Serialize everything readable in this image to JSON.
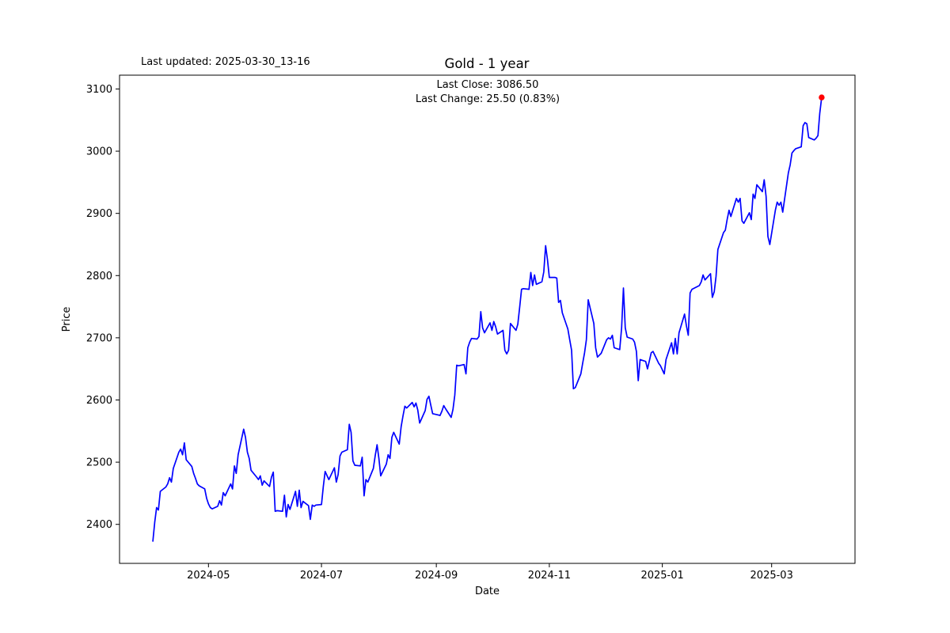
{
  "header": {
    "last_updated": "Last updated: 2025-03-30_13-16",
    "title": "Gold - 1 year"
  },
  "annotation": {
    "line1": "Last Close: 3086.50",
    "line2": "Last Change: 25.50 (0.83%)"
  },
  "axes": {
    "x_label": "Date",
    "y_label": "Price",
    "x_range": [
      "2024-03-14",
      "2025-04-15"
    ],
    "y_range": [
      2337.3,
      3122.2
    ],
    "x_ticks": [
      {
        "label": "2024-05",
        "date": "2024-05-01"
      },
      {
        "label": "2024-07",
        "date": "2024-07-01"
      },
      {
        "label": "2024-09",
        "date": "2024-09-01"
      },
      {
        "label": "2024-11",
        "date": "2024-11-01"
      },
      {
        "label": "2025-01",
        "date": "2025-01-01"
      },
      {
        "label": "2025-03",
        "date": "2025-03-01"
      }
    ],
    "y_ticks": [
      2400,
      2500,
      2600,
      2700,
      2800,
      2900,
      3000,
      3100
    ]
  },
  "chart_data": {
    "type": "line",
    "title": "Gold - 1 year",
    "xlabel": "Date",
    "ylabel": "Price",
    "grid": false,
    "legend": false,
    "last_close": 3086.5,
    "last_change": 25.5,
    "last_change_pct": 0.83,
    "last_point": {
      "date": "2025-03-28",
      "price": 3086.5,
      "marker_color": "#ff0000",
      "marker_radius": 3.7
    },
    "series": [
      {
        "name": "Gold price",
        "color": "#0000ff",
        "width": 1.7,
        "points": [
          [
            "2024-04-01",
            2373
          ],
          [
            "2024-04-02",
            2404
          ],
          [
            "2024-04-03",
            2427
          ],
          [
            "2024-04-04",
            2423
          ],
          [
            "2024-04-05",
            2453
          ],
          [
            "2024-04-08",
            2460
          ],
          [
            "2024-04-09",
            2465
          ],
          [
            "2024-04-10",
            2475
          ],
          [
            "2024-04-11",
            2468
          ],
          [
            "2024-04-12",
            2490
          ],
          [
            "2024-04-15",
            2516
          ],
          [
            "2024-04-16",
            2521
          ],
          [
            "2024-04-17",
            2512
          ],
          [
            "2024-04-18",
            2531
          ],
          [
            "2024-04-19",
            2504
          ],
          [
            "2024-04-22",
            2493
          ],
          [
            "2024-04-23",
            2482
          ],
          [
            "2024-04-24",
            2474
          ],
          [
            "2024-04-25",
            2465
          ],
          [
            "2024-04-26",
            2462
          ],
          [
            "2024-04-29",
            2457
          ],
          [
            "2024-04-30",
            2442
          ],
          [
            "2024-05-01",
            2433
          ],
          [
            "2024-05-02",
            2427
          ],
          [
            "2024-05-03",
            2425
          ],
          [
            "2024-05-06",
            2429
          ],
          [
            "2024-05-07",
            2438
          ],
          [
            "2024-05-08",
            2431
          ],
          [
            "2024-05-09",
            2451
          ],
          [
            "2024-05-10",
            2446
          ],
          [
            "2024-05-13",
            2465
          ],
          [
            "2024-05-14",
            2457
          ],
          [
            "2024-05-15",
            2494
          ],
          [
            "2024-05-16",
            2482
          ],
          [
            "2024-05-17",
            2512
          ],
          [
            "2024-05-20",
            2553
          ],
          [
            "2024-05-21",
            2540
          ],
          [
            "2024-05-22",
            2516
          ],
          [
            "2024-05-23",
            2506
          ],
          [
            "2024-05-24",
            2487
          ],
          [
            "2024-05-27",
            2476
          ],
          [
            "2024-05-28",
            2472
          ],
          [
            "2024-05-29",
            2478
          ],
          [
            "2024-05-30",
            2463
          ],
          [
            "2024-05-31",
            2470
          ],
          [
            "2024-06-03",
            2461
          ],
          [
            "2024-06-04",
            2476
          ],
          [
            "2024-06-05",
            2484
          ],
          [
            "2024-06-06",
            2421
          ],
          [
            "2024-06-07",
            2422
          ],
          [
            "2024-06-10",
            2421
          ],
          [
            "2024-06-11",
            2447
          ],
          [
            "2024-06-12",
            2412
          ],
          [
            "2024-06-13",
            2432
          ],
          [
            "2024-06-14",
            2424
          ],
          [
            "2024-06-17",
            2453
          ],
          [
            "2024-06-18",
            2429
          ],
          [
            "2024-06-19",
            2455
          ],
          [
            "2024-06-20",
            2427
          ],
          [
            "2024-06-21",
            2437
          ],
          [
            "2024-06-24",
            2430
          ],
          [
            "2024-06-25",
            2408
          ],
          [
            "2024-06-26",
            2431
          ],
          [
            "2024-06-27",
            2429
          ],
          [
            "2024-06-28",
            2431
          ],
          [
            "2024-07-01",
            2432
          ],
          [
            "2024-07-02",
            2461
          ],
          [
            "2024-07-03",
            2485
          ],
          [
            "2024-07-05",
            2472
          ],
          [
            "2024-07-08",
            2491
          ],
          [
            "2024-07-09",
            2468
          ],
          [
            "2024-07-10",
            2480
          ],
          [
            "2024-07-11",
            2510
          ],
          [
            "2024-07-12",
            2516
          ],
          [
            "2024-07-15",
            2520
          ],
          [
            "2024-07-16",
            2561
          ],
          [
            "2024-07-17",
            2548
          ],
          [
            "2024-07-18",
            2502
          ],
          [
            "2024-07-19",
            2495
          ],
          [
            "2024-07-22",
            2494
          ],
          [
            "2024-07-23",
            2508
          ],
          [
            "2024-07-24",
            2446
          ],
          [
            "2024-07-25",
            2472
          ],
          [
            "2024-07-26",
            2468
          ],
          [
            "2024-07-29",
            2490
          ],
          [
            "2024-07-30",
            2510
          ],
          [
            "2024-07-31",
            2528
          ],
          [
            "2024-08-01",
            2506
          ],
          [
            "2024-08-02",
            2478
          ],
          [
            "2024-08-05",
            2497
          ],
          [
            "2024-08-06",
            2512
          ],
          [
            "2024-08-07",
            2506
          ],
          [
            "2024-08-08",
            2540
          ],
          [
            "2024-08-09",
            2548
          ],
          [
            "2024-08-12",
            2529
          ],
          [
            "2024-08-13",
            2557
          ],
          [
            "2024-08-14",
            2574
          ],
          [
            "2024-08-15",
            2590
          ],
          [
            "2024-08-16",
            2587
          ],
          [
            "2024-08-19",
            2596
          ],
          [
            "2024-08-20",
            2589
          ],
          [
            "2024-08-21",
            2595
          ],
          [
            "2024-08-22",
            2584
          ],
          [
            "2024-08-23",
            2563
          ],
          [
            "2024-08-26",
            2583
          ],
          [
            "2024-08-27",
            2601
          ],
          [
            "2024-08-28",
            2606
          ],
          [
            "2024-08-29",
            2592
          ],
          [
            "2024-08-30",
            2578
          ],
          [
            "2024-09-02",
            2576
          ],
          [
            "2024-09-03",
            2575
          ],
          [
            "2024-09-04",
            2582
          ],
          [
            "2024-09-05",
            2591
          ],
          [
            "2024-09-06",
            2586
          ],
          [
            "2024-09-09",
            2572
          ],
          [
            "2024-09-10",
            2585
          ],
          [
            "2024-09-11",
            2608
          ],
          [
            "2024-09-12",
            2656
          ],
          [
            "2024-09-13",
            2655
          ],
          [
            "2024-09-16",
            2657
          ],
          [
            "2024-09-17",
            2642
          ],
          [
            "2024-09-18",
            2684
          ],
          [
            "2024-09-19",
            2693
          ],
          [
            "2024-09-20",
            2699
          ],
          [
            "2024-09-23",
            2698
          ],
          [
            "2024-09-24",
            2702
          ],
          [
            "2024-09-25",
            2742
          ],
          [
            "2024-09-26",
            2716
          ],
          [
            "2024-09-27",
            2708
          ],
          [
            "2024-09-30",
            2724
          ],
          [
            "2024-10-01",
            2712
          ],
          [
            "2024-10-02",
            2726
          ],
          [
            "2024-10-03",
            2718
          ],
          [
            "2024-10-04",
            2706
          ],
          [
            "2024-10-07",
            2712
          ],
          [
            "2024-10-08",
            2680
          ],
          [
            "2024-10-09",
            2674
          ],
          [
            "2024-10-10",
            2680
          ],
          [
            "2024-10-11",
            2723
          ],
          [
            "2024-10-14",
            2712
          ],
          [
            "2024-10-15",
            2722
          ],
          [
            "2024-10-16",
            2750
          ],
          [
            "2024-10-17",
            2778
          ],
          [
            "2024-10-18",
            2779
          ],
          [
            "2024-10-21",
            2778
          ],
          [
            "2024-10-22",
            2805
          ],
          [
            "2024-10-23",
            2784
          ],
          [
            "2024-10-24",
            2801
          ],
          [
            "2024-10-25",
            2786
          ],
          [
            "2024-10-28",
            2790
          ],
          [
            "2024-10-29",
            2806
          ],
          [
            "2024-10-30",
            2848
          ],
          [
            "2024-10-31",
            2825
          ],
          [
            "2024-11-01",
            2797
          ],
          [
            "2024-11-04",
            2797
          ],
          [
            "2024-11-05",
            2796
          ],
          [
            "2024-11-06",
            2757
          ],
          [
            "2024-11-07",
            2760
          ],
          [
            "2024-11-08",
            2740
          ],
          [
            "2024-11-11",
            2714
          ],
          [
            "2024-11-12",
            2697
          ],
          [
            "2024-11-13",
            2680
          ],
          [
            "2024-11-14",
            2618
          ],
          [
            "2024-11-15",
            2620
          ],
          [
            "2024-11-18",
            2642
          ],
          [
            "2024-11-19",
            2659
          ],
          [
            "2024-11-20",
            2676
          ],
          [
            "2024-11-21",
            2697
          ],
          [
            "2024-11-22",
            2761
          ],
          [
            "2024-11-25",
            2723
          ],
          [
            "2024-11-26",
            2684
          ],
          [
            "2024-11-27",
            2669
          ],
          [
            "2024-11-29",
            2675
          ],
          [
            "2024-12-02",
            2697
          ],
          [
            "2024-12-03",
            2700
          ],
          [
            "2024-12-04",
            2698
          ],
          [
            "2024-12-05",
            2704
          ],
          [
            "2024-12-06",
            2684
          ],
          [
            "2024-12-09",
            2681
          ],
          [
            "2024-12-10",
            2716
          ],
          [
            "2024-12-11",
            2780
          ],
          [
            "2024-12-12",
            2716
          ],
          [
            "2024-12-13",
            2701
          ],
          [
            "2024-12-16",
            2698
          ],
          [
            "2024-12-17",
            2693
          ],
          [
            "2024-12-18",
            2678
          ],
          [
            "2024-12-19",
            2631
          ],
          [
            "2024-12-20",
            2665
          ],
          [
            "2024-12-23",
            2662
          ],
          [
            "2024-12-24",
            2650
          ],
          [
            "2024-12-26",
            2676
          ],
          [
            "2024-12-27",
            2678
          ],
          [
            "2024-12-30",
            2659
          ],
          [
            "2024-12-31",
            2655
          ],
          [
            "2025-01-02",
            2642
          ],
          [
            "2025-01-03",
            2665
          ],
          [
            "2025-01-06",
            2692
          ],
          [
            "2025-01-07",
            2674
          ],
          [
            "2025-01-08",
            2699
          ],
          [
            "2025-01-09",
            2674
          ],
          [
            "2025-01-10",
            2708
          ],
          [
            "2025-01-13",
            2738
          ],
          [
            "2025-01-14",
            2719
          ],
          [
            "2025-01-15",
            2704
          ],
          [
            "2025-01-16",
            2772
          ],
          [
            "2025-01-17",
            2778
          ],
          [
            "2025-01-21",
            2784
          ],
          [
            "2025-01-22",
            2790
          ],
          [
            "2025-01-23",
            2801
          ],
          [
            "2025-01-24",
            2793
          ],
          [
            "2025-01-27",
            2803
          ],
          [
            "2025-01-28",
            2765
          ],
          [
            "2025-01-29",
            2774
          ],
          [
            "2025-01-30",
            2799
          ],
          [
            "2025-01-31",
            2842
          ],
          [
            "2025-02-03",
            2869
          ],
          [
            "2025-02-04",
            2873
          ],
          [
            "2025-02-05",
            2890
          ],
          [
            "2025-02-06",
            2905
          ],
          [
            "2025-02-07",
            2895
          ],
          [
            "2025-02-10",
            2924
          ],
          [
            "2025-02-11",
            2918
          ],
          [
            "2025-02-12",
            2924
          ],
          [
            "2025-02-13",
            2888
          ],
          [
            "2025-02-14",
            2884
          ],
          [
            "2025-02-17",
            2901
          ],
          [
            "2025-02-18",
            2890
          ],
          [
            "2025-02-19",
            2931
          ],
          [
            "2025-02-20",
            2924
          ],
          [
            "2025-02-21",
            2946
          ],
          [
            "2025-02-24",
            2935
          ],
          [
            "2025-02-25",
            2954
          ],
          [
            "2025-02-26",
            2927
          ],
          [
            "2025-02-27",
            2863
          ],
          [
            "2025-02-28",
            2850
          ],
          [
            "2025-03-03",
            2905
          ],
          [
            "2025-03-04",
            2918
          ],
          [
            "2025-03-05",
            2913
          ],
          [
            "2025-03-06",
            2918
          ],
          [
            "2025-03-07",
            2902
          ],
          [
            "2025-03-10",
            2965
          ],
          [
            "2025-03-11",
            2978
          ],
          [
            "2025-03-12",
            2997
          ],
          [
            "2025-03-13",
            3001
          ],
          [
            "2025-03-14",
            3004
          ],
          [
            "2025-03-17",
            3007
          ],
          [
            "2025-03-18",
            3041
          ],
          [
            "2025-03-19",
            3046
          ],
          [
            "2025-03-20",
            3044
          ],
          [
            "2025-03-21",
            3022
          ],
          [
            "2025-03-24",
            3018
          ],
          [
            "2025-03-25",
            3021
          ],
          [
            "2025-03-26",
            3025
          ],
          [
            "2025-03-27",
            3061
          ],
          [
            "2025-03-28",
            3086.5
          ]
        ]
      }
    ]
  }
}
